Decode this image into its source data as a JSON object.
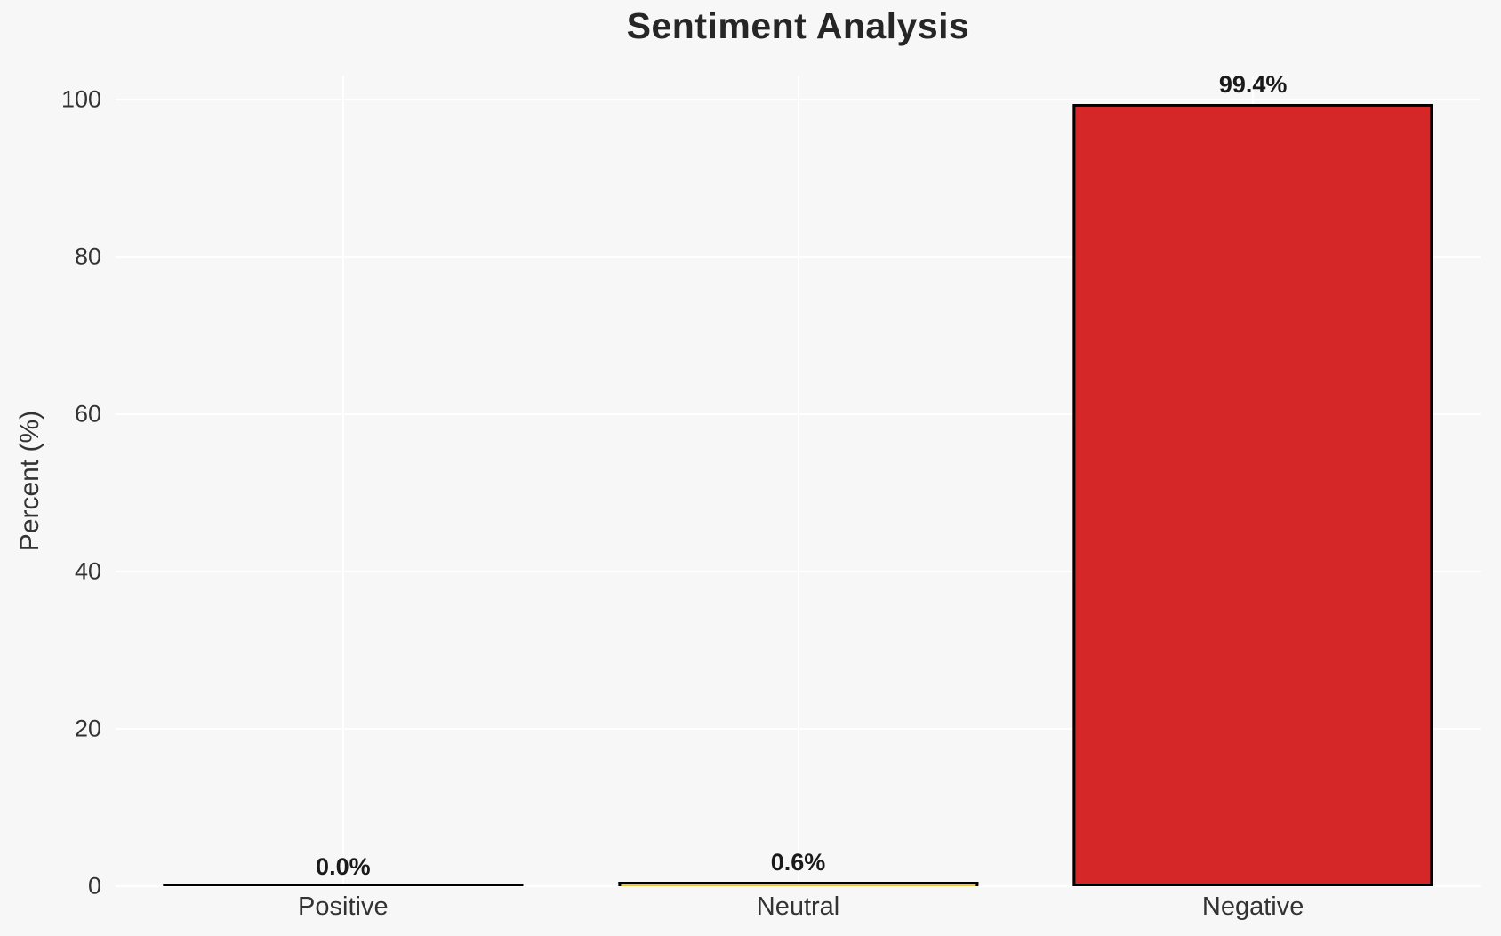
{
  "chart_data": {
    "type": "bar",
    "title": "Sentiment Analysis",
    "xlabel": "",
    "ylabel": "Percent (%)",
    "categories": [
      "Positive",
      "Neutral",
      "Negative"
    ],
    "values": [
      0.0,
      0.6,
      99.4
    ],
    "value_labels": [
      "0.0%",
      "0.6%",
      "99.4%"
    ],
    "bar_colors": [
      null,
      "#efc43f",
      "#d62728"
    ],
    "bar_edge_color": "#000000",
    "yticks": [
      0,
      20,
      40,
      60,
      80,
      100
    ],
    "ylim": [
      0,
      103
    ],
    "grid": true,
    "legend": false,
    "background_color": "#f7f7f7",
    "gridline_color": "#ffffff",
    "text_color": "#333333"
  }
}
